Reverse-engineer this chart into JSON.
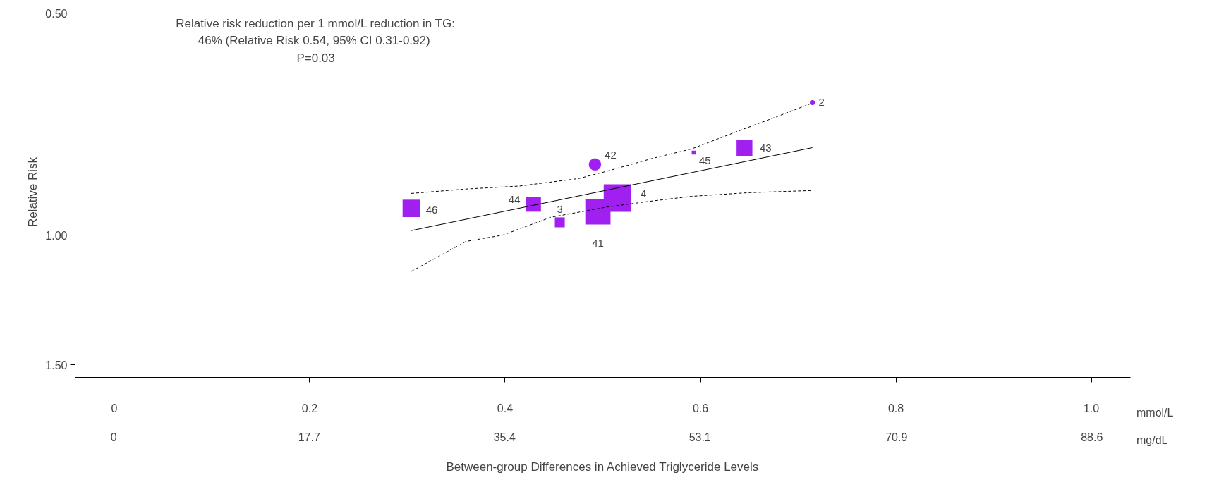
{
  "chart_data": {
    "type": "bubble",
    "ylabel": "Relative Risk",
    "xlabel": "Between-group Differences in Achieved Triglyceride Levels",
    "annotations": [
      "Relative risk reduction per 1 mmol/L reduction in TG:",
      "46% (Relative Risk 0.54,  95% CI 0.31-0.92)",
      "P=0.03",
      "mmol/L",
      "mg/dL",
      {
        "text": "46",
        "x": 0.304,
        "y": 0.92
      },
      {
        "text": "44",
        "x": 0.429,
        "y": 0.908
      },
      {
        "text": "3",
        "x": 0.456,
        "y": 0.961
      },
      {
        "text": "41",
        "x": 0.495,
        "y": 0.93
      },
      {
        "text": "4",
        "x": 0.515,
        "y": 0.891
      },
      {
        "text": "45",
        "x": 0.593,
        "y": 0.773
      },
      {
        "text": "43",
        "x": 0.645,
        "y": 0.762
      },
      {
        "text": "42",
        "x": 0.492,
        "y": 0.802
      },
      {
        "text": "2",
        "x": 0.7145,
        "y": 0.661
      }
    ],
    "xlim": [
      -0.04,
      1.04
    ],
    "xticks": [
      0,
      0.2,
      0.4,
      0.6,
      0.8,
      {
        "value": 1,
        "label": "1.0"
      }
    ],
    "x2lim": [
      -3.5,
      92.1
    ],
    "x2ticks": [
      0,
      17.7,
      35.4,
      53.1,
      70.9,
      88.6
    ],
    "ylim": [
      1.56,
      0.49
    ],
    "log": true,
    "yticks": [
      {
        "value": 0.5,
        "label": "0.50"
      },
      {
        "value": 1,
        "label": "1.00"
      },
      {
        "value": 1.5,
        "label": "1.50"
      }
    ],
    "grid": false,
    "ref_lines": [
      {
        "axis": "y",
        "value": 1,
        "color": "#000000",
        "line_style": "dotted"
      }
    ],
    "series": [
      {
        "marker": "square",
        "color": "#a020f0",
        "x": [
          0.304,
          0.429,
          0.456,
          0.495,
          0.515,
          0.593,
          0.645
        ],
        "values": [
          0.92,
          0.908,
          0.961,
          0.93,
          0.891,
          0.773,
          0.762
        ],
        "sizes": [
          0.4,
          0.3,
          0.13,
          0.84,
          1,
          0.02,
          0.33
        ]
      },
      {
        "marker": "circle",
        "color": "#a020f0",
        "x": [
          0.492,
          0.7145
        ],
        "values": [
          0.802,
          0.661
        ],
        "sizes": [
          0.158,
          0.0265
        ]
      },
      {
        "type": "line",
        "line_style": "solid",
        "color": "#000000",
        "x": [
          0.304,
          0.7145
        ],
        "values": [
          0.986,
          0.761
        ]
      },
      {
        "type": "line",
        "line_style": "dashed",
        "color": "#000000",
        "x": [
          0.304,
          0.36,
          0.415,
          0.4756,
          0.5045,
          0.5507,
          0.591,
          0.6345,
          0.6778,
          0.7145
        ],
        "values": [
          0.878,
          0.866,
          0.858,
          0.838,
          0.819,
          0.787,
          0.764,
          0.726,
          0.691,
          0.662
        ]
      },
      {
        "type": "line",
        "line_style": "dashed",
        "color": "#000000",
        "x": [
          0.304,
          0.36,
          0.3977,
          0.4467,
          0.5045,
          0.5478,
          0.591,
          0.6489,
          0.7145
        ],
        "values": [
          1.12,
          1.02,
          1.0,
          0.946,
          0.916,
          0.9,
          0.886,
          0.876,
          0.87
        ]
      }
    ]
  }
}
